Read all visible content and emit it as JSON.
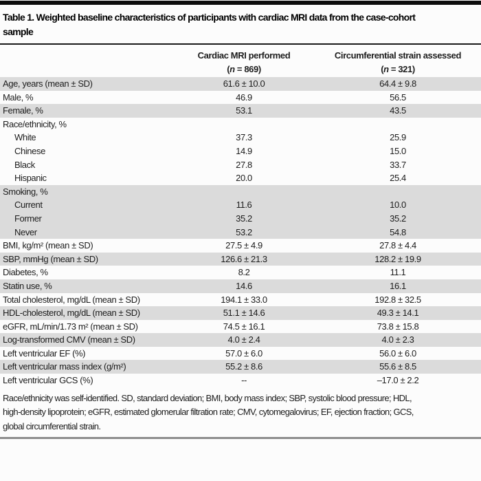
{
  "colors": {
    "top_bar": "#0d0d0d",
    "row_shade": "#dbdbdb",
    "title_rule": "#1a1a1a",
    "bottom_rule": "#8c8c8c",
    "text": "#1c1c1c",
    "background": "#fcfcfc"
  },
  "table": {
    "title_line1": "Table 1. Weighted baseline characteristics of participants with cardiac MRI data from the case-cohort",
    "title_line2": "sample",
    "columns": [
      {
        "title": "Cardiac MRI performed",
        "n_open": "(",
        "n_symbol": "n",
        "n_rest": " = 869)"
      },
      {
        "title": "Circumferential strain assessed",
        "n_open": "(",
        "n_symbol": "n",
        "n_rest": " = 321)"
      }
    ],
    "rows": [
      {
        "label": "Age, years (mean ± SD)",
        "v1": "61.6 ± 10.0",
        "v2": "64.4 ± 9.8",
        "shaded": true,
        "indent": false
      },
      {
        "label": "Male, %",
        "v1": "46.9",
        "v2": "56.5",
        "shaded": false,
        "indent": false
      },
      {
        "label": "Female, %",
        "v1": "53.1",
        "v2": "43.5",
        "shaded": true,
        "indent": false
      },
      {
        "label": "Race/ethnicity, %",
        "v1": "",
        "v2": "",
        "shaded": false,
        "indent": false
      },
      {
        "label": "White",
        "v1": "37.3",
        "v2": "25.9",
        "shaded": false,
        "indent": true
      },
      {
        "label": "Chinese",
        "v1": "14.9",
        "v2": "15.0",
        "shaded": false,
        "indent": true
      },
      {
        "label": "Black",
        "v1": "27.8",
        "v2": "33.7",
        "shaded": false,
        "indent": true
      },
      {
        "label": "Hispanic",
        "v1": "20.0",
        "v2": "25.4",
        "shaded": false,
        "indent": true
      },
      {
        "label": "Smoking, %",
        "v1": "",
        "v2": "",
        "shaded": true,
        "indent": false
      },
      {
        "label": "Current",
        "v1": "11.6",
        "v2": "10.0",
        "shaded": true,
        "indent": true
      },
      {
        "label": "Former",
        "v1": "35.2",
        "v2": "35.2",
        "shaded": true,
        "indent": true
      },
      {
        "label": "Never",
        "v1": "53.2",
        "v2": "54.8",
        "shaded": true,
        "indent": true
      },
      {
        "label": "BMI, kg/m² (mean ± SD)",
        "v1": "27.5 ± 4.9",
        "v2": "27.8 ± 4.4",
        "shaded": false,
        "indent": false
      },
      {
        "label": "SBP, mmHg (mean ± SD)",
        "v1": "126.6 ± 21.3",
        "v2": "128.2 ± 19.9",
        "shaded": true,
        "indent": false
      },
      {
        "label": "Diabetes, %",
        "v1": "8.2",
        "v2": "11.1",
        "shaded": false,
        "indent": false
      },
      {
        "label": "Statin use, %",
        "v1": "14.6",
        "v2": "16.1",
        "shaded": true,
        "indent": false
      },
      {
        "label": "Total cholesterol, mg/dL (mean ± SD)",
        "v1": "194.1 ± 33.0",
        "v2": "192.8 ± 32.5",
        "shaded": false,
        "indent": false
      },
      {
        "label": "HDL-cholesterol, mg/dL (mean ± SD)",
        "v1": "51.1 ± 14.6",
        "v2": "49.3 ± 14.1",
        "shaded": true,
        "indent": false
      },
      {
        "label": "eGFR, mL/min/1.73 m² (mean ± SD)",
        "v1": "74.5 ± 16.1",
        "v2": "73.8 ± 15.8",
        "shaded": false,
        "indent": false
      },
      {
        "label": "Log-transformed CMV (mean ± SD)",
        "v1": "4.0 ± 2.4",
        "v2": "4.0 ± 2.3",
        "shaded": true,
        "indent": false
      },
      {
        "label": "Left ventricular EF (%)",
        "v1": "57.0 ± 6.0",
        "v2": "56.0 ± 6.0",
        "shaded": false,
        "indent": false
      },
      {
        "label": "Left ventricular mass index (g/m²)",
        "v1": "55.2 ± 8.6",
        "v2": "55.6 ± 8.5",
        "shaded": true,
        "indent": false
      },
      {
        "label": "Left ventricular GCS (%)",
        "v1": "--",
        "v2": "–17.0 ± 2.2",
        "shaded": false,
        "indent": false
      }
    ],
    "footnote_lines": [
      "Race/ethnicity was self-identified. SD, standard deviation; BMI, body mass index; SBP, systolic blood pressure; HDL,",
      "high-density lipoprotein; eGFR, estimated glomerular filtration rate; CMV, cytomegalovirus; EF, ejection fraction; GCS,",
      "global circumferential strain."
    ]
  }
}
